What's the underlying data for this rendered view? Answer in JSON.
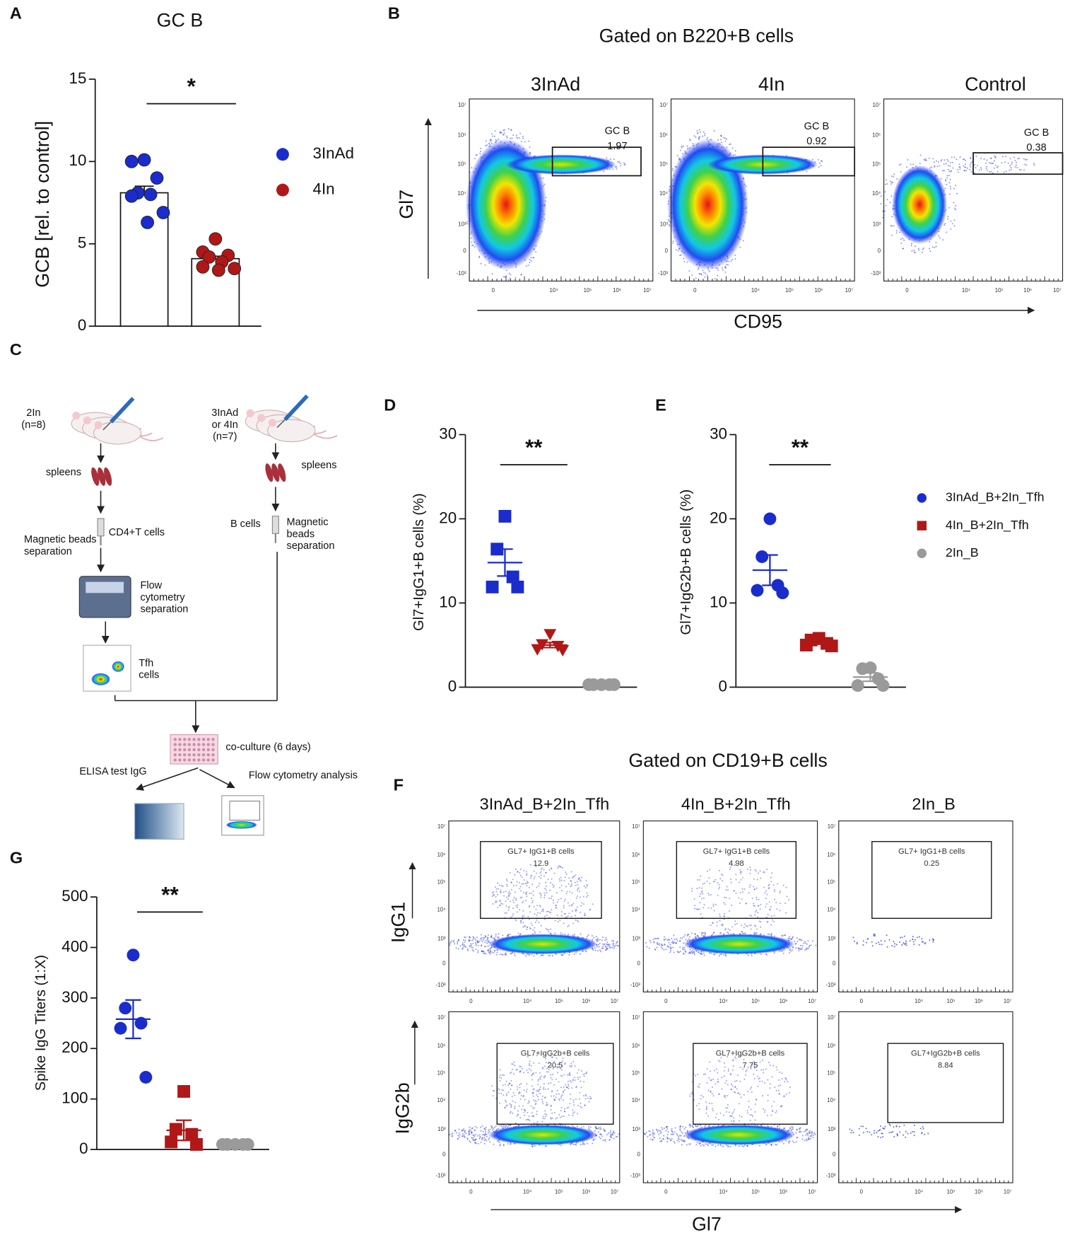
{
  "panel_labels": [
    "A",
    "B",
    "C",
    "D",
    "E",
    "F",
    "G"
  ],
  "chart_data": [
    {
      "type": "bar",
      "title": "GC B",
      "ylabel": "GCB  [rel. to control]",
      "ylim": [
        0,
        15
      ],
      "yticks": [
        0,
        5,
        10,
        15
      ],
      "annotation": "*",
      "series": [
        {
          "name": "3InAd",
          "color": "#1a2ccc",
          "marker": "circle",
          "mean": 8.1,
          "sem": 0.4,
          "points": [
            10.1,
            10.0,
            9.0,
            8.1,
            8.0,
            7.9,
            6.9,
            6.3
          ]
        },
        {
          "name": "4In",
          "color": "#b01818",
          "marker": "circle",
          "mean": 4.1,
          "sem": 0.15,
          "points": [
            5.3,
            4.5,
            4.3,
            4.2,
            3.9,
            3.6,
            3.5,
            3.4
          ]
        }
      ]
    },
    {
      "type": "dot",
      "ylabel": "Gl7+IgG1+B cells (%)",
      "ylim": [
        0,
        30
      ],
      "yticks": [
        0,
        10,
        20,
        30
      ],
      "annotation": "**",
      "series": [
        {
          "color": "#1a2ccc",
          "marker": "square",
          "mean": 14.8,
          "sem": 1.6,
          "points": [
            20.3,
            16.4,
            13.1,
            11.9,
            11.9
          ]
        },
        {
          "color": "#b01818",
          "marker": "triangle",
          "mean": 5.0,
          "sem": 0.3,
          "points": [
            6.3,
            5.1,
            4.9,
            4.5,
            4.4
          ]
        },
        {
          "color": "#9a9a9a",
          "marker": "circle",
          "mean": 0.3,
          "sem": 0.02,
          "points": [
            0.3,
            0.3,
            0.3,
            0.3,
            0.3
          ]
        }
      ]
    },
    {
      "type": "dot",
      "ylabel": "Gl7+IgG2b+B cells (%)",
      "ylim": [
        0,
        30
      ],
      "yticks": [
        0,
        10,
        20,
        30
      ],
      "annotation": "**",
      "series": [
        {
          "name": "3InAd_B+2In_Tfh",
          "color": "#1a2ccc",
          "marker": "circle",
          "legend_marker": "circle",
          "mean": 13.9,
          "sem": 1.8,
          "points": [
            20.0,
            15.5,
            12.1,
            11.5,
            11.2
          ]
        },
        {
          "name": "4In_B+2In_Tfh",
          "color": "#b01818",
          "marker": "square",
          "legend_marker": "square",
          "mean": 5.3,
          "sem": 0.2,
          "points": [
            5.8,
            5.6,
            5.2,
            5.0,
            4.9
          ]
        },
        {
          "name": "2In_B",
          "color": "#9a9a9a",
          "marker": "circle",
          "legend_marker": "circle",
          "mean": 1.2,
          "sem": 0.5,
          "points": [
            2.3,
            2.2,
            1.0,
            0.2,
            0.2
          ]
        }
      ]
    },
    {
      "type": "dot",
      "ylabel": "Spike  IgG Titers (1:X)",
      "ylim": [
        0,
        500
      ],
      "yticks": [
        0,
        100,
        200,
        300,
        400,
        500
      ],
      "annotation": "**",
      "series": [
        {
          "color": "#1a2ccc",
          "marker": "circle",
          "mean": 258,
          "sem": 38,
          "points": [
            385,
            280,
            250,
            240,
            143
          ]
        },
        {
          "color": "#b01818",
          "marker": "square",
          "mean": 38,
          "sem": 20,
          "points": [
            115,
            40,
            30,
            15,
            10
          ]
        },
        {
          "color": "#9a9a9a",
          "marker": "circle",
          "mean": 10,
          "sem": 1,
          "points": [
            10,
            10,
            10,
            10,
            10
          ]
        }
      ]
    }
  ],
  "flow_B": {
    "title": "Gated on B220+B cells",
    "xlabel": "CD95",
    "ylabel": "Gl7",
    "ytick_labels": [
      "-10³",
      "0",
      "10³",
      "10⁴",
      "10⁵",
      "10⁶",
      "10⁷"
    ],
    "xtick_labels": [
      "0",
      "10⁴",
      "10⁵",
      "10⁶",
      "10⁷"
    ],
    "panels": [
      {
        "title": "3InAd",
        "gate_label": "GC B",
        "gate_value": 1.97
      },
      {
        "title": "4In",
        "gate_label": "GC B",
        "gate_value": 0.92
      },
      {
        "title": "Control",
        "gate_label": "GC B",
        "gate_value": 0.38
      }
    ]
  },
  "diagram": {
    "nodes": [
      {
        "lines": [
          "2In",
          "(n=8)"
        ]
      },
      {
        "lines": [
          "3InAd",
          "or 4In",
          "(n=7)"
        ]
      },
      {
        "lines": [
          "spleens"
        ]
      },
      {
        "lines": [
          "spleens"
        ]
      },
      {
        "lines": [
          "CD4+T cells"
        ]
      },
      {
        "lines": [
          "Magnetic beads",
          "separation"
        ]
      },
      {
        "lines": [
          "B cells"
        ]
      },
      {
        "lines": [
          "Magnetic",
          "beads",
          "separation"
        ]
      },
      {
        "lines": [
          "Flow",
          "cytometry",
          "separation"
        ]
      },
      {
        "lines": [
          "Tfh",
          "cells"
        ]
      },
      {
        "lines": [
          "co-culture (6 days)"
        ]
      },
      {
        "lines": [
          "ELISA test IgG"
        ]
      },
      {
        "lines": [
          "Flow cytometry analysis"
        ]
      }
    ]
  },
  "flow_F": {
    "title": "Gated on CD19+B cells",
    "xlabel": "Gl7",
    "columns": [
      "3InAd_B+2In_Tfh",
      "4In_B+2In_Tfh",
      "2In_B"
    ],
    "ytick_labels": [
      "-10³",
      "0",
      "10³",
      "10⁴",
      "10⁵",
      "10⁶",
      "10⁷"
    ],
    "xtick_labels": [
      "0",
      "10⁴",
      "10⁵",
      "10⁶",
      "10⁷"
    ],
    "rows": [
      {
        "label": "IgG1",
        "gate_label": "GL7+ IgG1+B cells",
        "gate_values": [
          12.9,
          4.98,
          0.25
        ]
      },
      {
        "label": "IgG2b",
        "gate_label": "GL7+IgG2b+B cells",
        "gate_values": [
          20.5,
          7.75,
          8.84
        ]
      }
    ]
  }
}
